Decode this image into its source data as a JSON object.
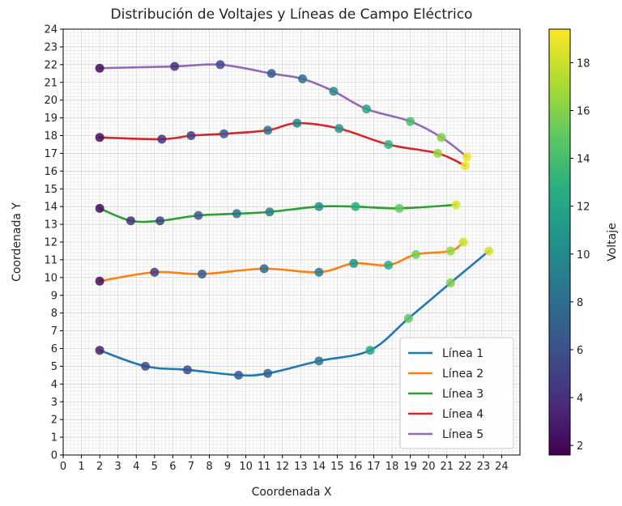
{
  "chart_data": {
    "type": "line",
    "title": "Distribución de Voltajes y Líneas de Campo Eléctrico",
    "xlabel": "Coordenada X",
    "ylabel": "Coordenada Y",
    "xlim": [
      0,
      25
    ],
    "ylim": [
      0,
      24
    ],
    "xticks": [
      "0",
      "1",
      "2",
      "3",
      "4",
      "5",
      "6",
      "7",
      "8",
      "9",
      "10",
      "11",
      "12",
      "13",
      "14",
      "15",
      "16",
      "17",
      "18",
      "19",
      "20",
      "21",
      "22",
      "23",
      "24"
    ],
    "yticks": [
      "0",
      "1",
      "2",
      "3",
      "4",
      "5",
      "6",
      "7",
      "8",
      "9",
      "10",
      "11",
      "12",
      "13",
      "14",
      "15",
      "16",
      "17",
      "18",
      "19",
      "20",
      "21",
      "22",
      "23",
      "24"
    ],
    "grid": true,
    "legend_position": "lower-right",
    "colorbar": {
      "label": "Voltaje",
      "range": [
        1.6,
        19.4
      ],
      "ticks": [
        "2",
        "4",
        "6",
        "8",
        "10",
        "12",
        "14",
        "16",
        "18"
      ],
      "colormap": "viridis"
    },
    "series": [
      {
        "name": "Línea 1",
        "color": "#1f77b4",
        "points": [
          [
            2.0,
            5.9,
            3.0
          ],
          [
            4.5,
            5.0,
            5.5
          ],
          [
            6.8,
            4.8,
            6.0
          ],
          [
            9.6,
            4.5,
            6.7
          ],
          [
            11.2,
            4.6,
            7.0
          ],
          [
            14.0,
            5.3,
            8.8
          ],
          [
            16.8,
            5.9,
            12.0
          ],
          [
            18.9,
            7.7,
            15.0
          ],
          [
            21.2,
            9.7,
            15.8
          ],
          [
            23.3,
            11.5,
            18.3
          ]
        ]
      },
      {
        "name": "Línea 2",
        "color": "#ff7f0e",
        "points": [
          [
            2.0,
            9.8,
            2.0
          ],
          [
            5.0,
            10.3,
            4.5
          ],
          [
            7.6,
            10.2,
            6.5
          ],
          [
            11.0,
            10.5,
            7.5
          ],
          [
            14.0,
            10.3,
            9.0
          ],
          [
            15.9,
            10.8,
            10.5
          ],
          [
            17.8,
            10.7,
            12.5
          ],
          [
            19.3,
            11.3,
            15.5
          ],
          [
            21.2,
            11.5,
            16.5
          ],
          [
            21.9,
            12.0,
            18.0
          ]
        ]
      },
      {
        "name": "Línea 3",
        "color": "#2ca02c",
        "points": [
          [
            2.0,
            13.9,
            2.0
          ],
          [
            3.7,
            13.2,
            4.0
          ],
          [
            5.3,
            13.2,
            5.0
          ],
          [
            7.4,
            13.5,
            6.5
          ],
          [
            9.5,
            13.6,
            8.0
          ],
          [
            11.3,
            13.7,
            9.0
          ],
          [
            14.0,
            14.0,
            10.5
          ],
          [
            16.0,
            14.0,
            12.5
          ],
          [
            18.4,
            13.9,
            15.0
          ],
          [
            21.5,
            14.1,
            18.5
          ]
        ]
      },
      {
        "name": "Línea 4",
        "color": "#d62728",
        "points": [
          [
            2.0,
            17.9,
            2.0
          ],
          [
            5.4,
            17.8,
            4.0
          ],
          [
            7.0,
            18.0,
            5.0
          ],
          [
            8.8,
            18.1,
            6.5
          ],
          [
            11.2,
            18.3,
            8.0
          ],
          [
            12.8,
            18.7,
            9.0
          ],
          [
            15.1,
            18.4,
            11.0
          ],
          [
            17.8,
            17.5,
            13.0
          ],
          [
            20.5,
            17.0,
            16.5
          ],
          [
            22.0,
            16.3,
            19.0
          ]
        ]
      },
      {
        "name": "Línea 5",
        "color": "#9467bd",
        "points": [
          [
            2.0,
            21.8,
            2.0
          ],
          [
            6.1,
            21.9,
            4.0
          ],
          [
            8.6,
            22.0,
            5.5
          ],
          [
            11.4,
            21.5,
            6.5
          ],
          [
            13.1,
            21.2,
            8.0
          ],
          [
            14.8,
            20.5,
            10.0
          ],
          [
            16.6,
            19.5,
            12.0
          ],
          [
            19.0,
            18.8,
            14.0
          ],
          [
            20.7,
            17.9,
            16.0
          ],
          [
            22.1,
            16.8,
            19.0
          ]
        ]
      }
    ]
  }
}
